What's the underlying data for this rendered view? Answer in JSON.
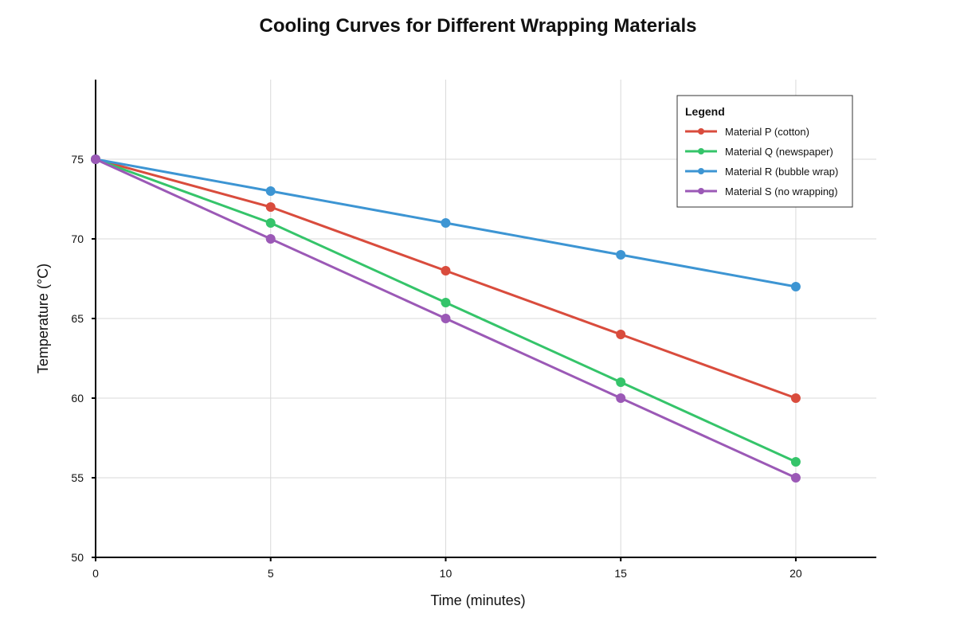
{
  "chart_data": {
    "type": "line",
    "title": "Cooling Curves for Different Wrapping Materials",
    "xlabel": "Time (minutes)",
    "ylabel": "Temperature (°C)",
    "x": [
      0,
      5,
      10,
      15,
      20
    ],
    "xlim": [
      0,
      22.3
    ],
    "ylim": [
      50,
      80
    ],
    "x_ticks": [
      0,
      5,
      10,
      15,
      20
    ],
    "y_ticks": [
      50,
      55,
      60,
      65,
      70,
      75
    ],
    "grid": true,
    "legend": {
      "title": "Legend",
      "placement": "top-right"
    },
    "series": [
      {
        "name": "Material P (cotton)",
        "color": "#d94c3d",
        "values": [
          75,
          72,
          68,
          64,
          60
        ]
      },
      {
        "name": "Material Q (newspaper)",
        "color": "#35c46a",
        "values": [
          75,
          71,
          66,
          61,
          56
        ]
      },
      {
        "name": "Material R (bubble wrap)",
        "color": "#3d95d3",
        "values": [
          75,
          73,
          71,
          69,
          67
        ]
      },
      {
        "name": "Material S (no wrapping)",
        "color": "#9b59b6",
        "values": [
          75,
          70,
          65,
          60,
          55
        ]
      }
    ]
  }
}
